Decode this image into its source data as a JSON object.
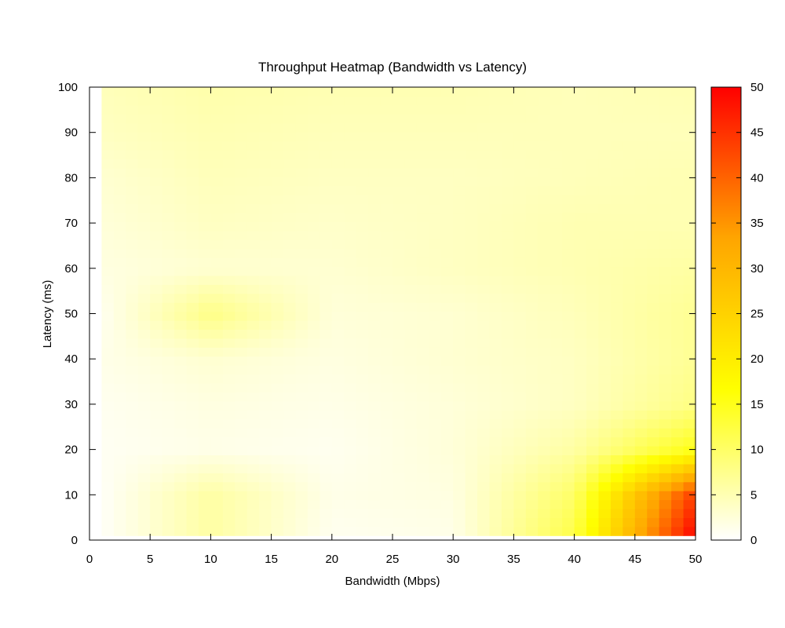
{
  "chart_data": {
    "type": "heatmap",
    "title": "Throughput Heatmap (Bandwidth vs Latency)",
    "xlabel": "Bandwidth (Mbps)",
    "ylabel": "Latency (ms)",
    "xlim": [
      0,
      50
    ],
    "ylim": [
      0,
      100
    ],
    "xticks": [
      0,
      5,
      10,
      15,
      20,
      25,
      30,
      35,
      40,
      45,
      50
    ],
    "yticks": [
      0,
      10,
      20,
      30,
      40,
      50,
      60,
      70,
      80,
      90,
      100
    ],
    "colorbar": {
      "range": [
        0,
        50
      ],
      "ticks": [
        0,
        5,
        10,
        15,
        20,
        25,
        30,
        35,
        40,
        45,
        50
      ],
      "placement": "right",
      "colors": [
        "#ffffff",
        "#ffff00",
        "#ffa500",
        "#ff0000"
      ]
    },
    "grid": false,
    "x": [
      1,
      10,
      20,
      30,
      40,
      50
    ],
    "y": [
      1,
      10,
      20,
      30,
      40,
      50,
      60,
      70,
      80,
      90,
      100
    ],
    "z": [
      [
        0.5,
        6,
        1,
        1.5,
        12,
        50
      ],
      [
        0.5,
        6,
        1.5,
        2,
        10,
        44
      ],
      [
        0.8,
        1.5,
        1,
        2.5,
        6,
        15
      ],
      [
        1,
        2,
        1.5,
        2.5,
        4,
        8
      ],
      [
        1.5,
        3,
        2,
        3,
        4,
        7
      ],
      [
        1,
        8,
        2.5,
        3,
        4.5,
        7
      ],
      [
        2,
        3,
        3,
        4,
        5,
        6
      ],
      [
        2.5,
        4,
        3.5,
        4,
        5,
        5
      ],
      [
        3,
        4.5,
        4,
        4,
        4.5,
        5
      ],
      [
        4,
        5,
        4.5,
        4.5,
        4.5,
        4.5
      ],
      [
        4.5,
        5.5,
        5,
        5,
        4.5,
        5
      ]
    ]
  }
}
